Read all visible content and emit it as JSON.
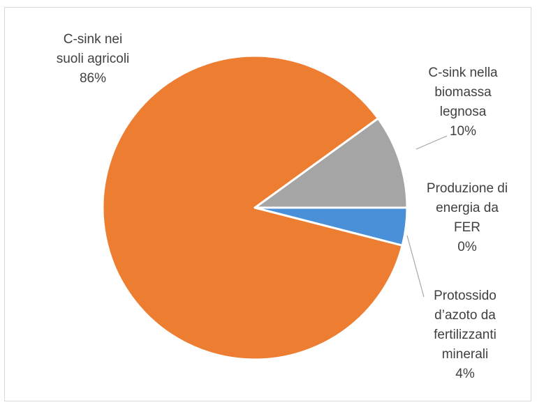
{
  "chart_data": {
    "type": "pie",
    "title": "",
    "start_angle_deg": 0,
    "direction": "counterclockwise",
    "slices": [
      {
        "label_lines": [
          "C-sink nella",
          "biomassa",
          "legnosa"
        ],
        "value_label": "10%",
        "value": 10,
        "color": "#a5a5a5"
      },
      {
        "label_lines": [
          "C-sink nei",
          "suoli agricoli"
        ],
        "value_label": "86%",
        "value": 86,
        "color": "#ed7d31"
      },
      {
        "label_lines": [
          "Protossido",
          "d’azoto da",
          "fertilizzanti",
          "minerali"
        ],
        "value_label": "4%",
        "value": 4,
        "color": "#4a90d9"
      },
      {
        "label_lines": [
          "Produzione di",
          "energia da",
          "FER"
        ],
        "value_label": "0%",
        "value": 0.0001,
        "color": "#ffc000"
      }
    ]
  }
}
